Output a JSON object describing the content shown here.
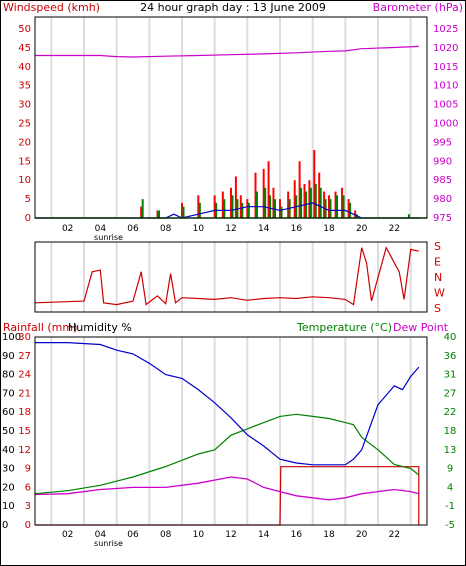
{
  "title": "24 hour graph day : 13 June 2009",
  "chart_data": [
    {
      "id": "wind_baro",
      "type": "bar+line",
      "ylabel_left": "Windspeed (kmh)",
      "ylabel_right": "Barometer (hPa)",
      "left_ticks": [
        "0",
        "5",
        "10",
        "15",
        "20",
        "25",
        "30",
        "35",
        "40",
        "45",
        "50"
      ],
      "right_ticks": [
        "975",
        "980",
        "985",
        "990",
        "995",
        "1000",
        "1005",
        "1010",
        "1015",
        "1020",
        "1025"
      ],
      "x_ticks": [
        "02",
        "04",
        "06",
        "08",
        "10",
        "12",
        "14",
        "16",
        "18",
        "20",
        "22"
      ],
      "x_sublabel": "sunrise",
      "ylim_left": [
        0,
        50
      ],
      "ylim_right": [
        975,
        1025
      ],
      "colors": {
        "gust": "#ff0000",
        "speed": "#008000",
        "avg": "#0000cc",
        "baro": "#cc00cc"
      },
      "barometer": [
        [
          0,
          1018
        ],
        [
          4,
          1018
        ],
        [
          5,
          1017.7
        ],
        [
          6,
          1017.6
        ],
        [
          8,
          1017.8
        ],
        [
          10,
          1018
        ],
        [
          12,
          1018.2
        ],
        [
          14,
          1018.4
        ],
        [
          16,
          1018.7
        ],
        [
          18,
          1019.1
        ],
        [
          19,
          1019.2
        ],
        [
          20,
          1019.8
        ],
        [
          22,
          1020.1
        ],
        [
          23.5,
          1020.4
        ]
      ],
      "wind_gust": [
        [
          6.5,
          3
        ],
        [
          7.5,
          2
        ],
        [
          9,
          4
        ],
        [
          10,
          6
        ],
        [
          11,
          6
        ],
        [
          11.5,
          7
        ],
        [
          12,
          8
        ],
        [
          12.3,
          11
        ],
        [
          12.6,
          6
        ],
        [
          13,
          5
        ],
        [
          13.5,
          12
        ],
        [
          14,
          13
        ],
        [
          14.3,
          15
        ],
        [
          14.6,
          8
        ],
        [
          15,
          5
        ],
        [
          15.5,
          7
        ],
        [
          15.9,
          10
        ],
        [
          16.2,
          15
        ],
        [
          16.5,
          9
        ],
        [
          16.8,
          10
        ],
        [
          17.1,
          18
        ],
        [
          17.4,
          12
        ],
        [
          17.7,
          7
        ],
        [
          18,
          6
        ],
        [
          18.4,
          7
        ],
        [
          18.8,
          8
        ],
        [
          19.2,
          5
        ],
        [
          19.6,
          2
        ]
      ],
      "wind_speed": [
        [
          6.5,
          5
        ],
        [
          7.5,
          2
        ],
        [
          9,
          3
        ],
        [
          10,
          4
        ],
        [
          11,
          4
        ],
        [
          11.5,
          5
        ],
        [
          12,
          6
        ],
        [
          12.3,
          5
        ],
        [
          12.6,
          4
        ],
        [
          13,
          4
        ],
        [
          13.5,
          7
        ],
        [
          14,
          8
        ],
        [
          14.3,
          6
        ],
        [
          14.6,
          5
        ],
        [
          15,
          3
        ],
        [
          15.5,
          5
        ],
        [
          15.9,
          6
        ],
        [
          16.2,
          8
        ],
        [
          16.5,
          7
        ],
        [
          16.8,
          8
        ],
        [
          17.1,
          9
        ],
        [
          17.4,
          8
        ],
        [
          17.7,
          5
        ],
        [
          18,
          5
        ],
        [
          18.4,
          6
        ],
        [
          18.8,
          6
        ],
        [
          19.2,
          4
        ],
        [
          19.6,
          1
        ],
        [
          22.8,
          1
        ]
      ],
      "wind_avg": [
        [
          0,
          0
        ],
        [
          8,
          0
        ],
        [
          8.5,
          1
        ],
        [
          9,
          0
        ],
        [
          10,
          1
        ],
        [
          11,
          2
        ],
        [
          12,
          2
        ],
        [
          13,
          3
        ],
        [
          14,
          3
        ],
        [
          15,
          2
        ],
        [
          16,
          3
        ],
        [
          17,
          4
        ],
        [
          18,
          2
        ],
        [
          19,
          2
        ],
        [
          19.5,
          1
        ],
        [
          20,
          0
        ],
        [
          23.5,
          0
        ]
      ]
    },
    {
      "id": "direction",
      "type": "line",
      "right_labels": [
        "S",
        "E",
        "N",
        "W",
        "S"
      ],
      "color": "#cc0000",
      "direction": [
        [
          0,
          210
        ],
        [
          3,
          220
        ],
        [
          3.5,
          30
        ],
        [
          4,
          40
        ],
        [
          4.2,
          210
        ],
        [
          5,
          200
        ],
        [
          6,
          220
        ],
        [
          6.5,
          30
        ],
        [
          6.8,
          200
        ],
        [
          7,
          215
        ],
        [
          7.5,
          250
        ],
        [
          8,
          205
        ],
        [
          8.3,
          20
        ],
        [
          8.6,
          210
        ],
        [
          9,
          240
        ],
        [
          10,
          235
        ],
        [
          11,
          230
        ],
        [
          12,
          240
        ],
        [
          13,
          225
        ],
        [
          14,
          235
        ],
        [
          15,
          240
        ],
        [
          16,
          235
        ],
        [
          17,
          245
        ],
        [
          18,
          240
        ],
        [
          19,
          230
        ],
        [
          19.5,
          200
        ],
        [
          20,
          170
        ],
        [
          20.3,
          80
        ],
        [
          20.6,
          220
        ],
        [
          21.5,
          170
        ],
        [
          22.3,
          30
        ],
        [
          22.6,
          230
        ],
        [
          23,
          160
        ],
        [
          23.5,
          150
        ]
      ]
    },
    {
      "id": "rain_hum_temp",
      "type": "line",
      "ylabel_left": "Rainfall (mm)",
      "ylabel_left2": "Humidity %",
      "ylabel_right": "Temperature (°C)",
      "ylabel_right2": "Dew Point",
      "rain_ticks": [
        "0",
        "3",
        "6",
        "9",
        "12",
        "15",
        "18",
        "21",
        "24",
        "27",
        "30"
      ],
      "hum_ticks": [
        "0",
        "10",
        "20",
        "30",
        "40",
        "50",
        "60",
        "70",
        "80",
        "90",
        "100"
      ],
      "temp_ticks": [
        "-5",
        "-1",
        "4",
        "9",
        "13",
        "18",
        "22",
        "27",
        "31",
        "36",
        "40"
      ],
      "x_ticks": [
        "02",
        "04",
        "06",
        "08",
        "10",
        "12",
        "14",
        "16",
        "18",
        "20",
        "22"
      ],
      "x_sublabel": "sunrise",
      "ylim_rain": [
        0,
        30
      ],
      "ylim_hum": [
        0,
        100
      ],
      "ylim_temp": [
        -5,
        40
      ],
      "colors": {
        "humidity": "#0000cc",
        "temperature": "#008000",
        "dewpoint": "#cc00cc",
        "rain": "#cc0000"
      },
      "humidity": [
        [
          0,
          97
        ],
        [
          2,
          97
        ],
        [
          4,
          96
        ],
        [
          5,
          93
        ],
        [
          6,
          91
        ],
        [
          7,
          86
        ],
        [
          8,
          80
        ],
        [
          9,
          78
        ],
        [
          10,
          72
        ],
        [
          11,
          65
        ],
        [
          12,
          57
        ],
        [
          13,
          48
        ],
        [
          14,
          42
        ],
        [
          15,
          35
        ],
        [
          16,
          33
        ],
        [
          17,
          32
        ],
        [
          18,
          32
        ],
        [
          19,
          32
        ],
        [
          19.5,
          35
        ],
        [
          20,
          40
        ],
        [
          21,
          64
        ],
        [
          22,
          74
        ],
        [
          22.5,
          72
        ],
        [
          23,
          79
        ],
        [
          23.5,
          84
        ]
      ],
      "temperature": [
        [
          0,
          2.5
        ],
        [
          2,
          3.2
        ],
        [
          4,
          4.5
        ],
        [
          6,
          6.5
        ],
        [
          8,
          9
        ],
        [
          10,
          12
        ],
        [
          11,
          13
        ],
        [
          12,
          16.5
        ],
        [
          13,
          18
        ],
        [
          14,
          19.5
        ],
        [
          15,
          21
        ],
        [
          16,
          21.5
        ],
        [
          17,
          21
        ],
        [
          18,
          20.5
        ],
        [
          19,
          19.5
        ],
        [
          19.5,
          19
        ],
        [
          20,
          16
        ],
        [
          21,
          13
        ],
        [
          22,
          9.5
        ],
        [
          23,
          8.5
        ],
        [
          23.5,
          7
        ]
      ],
      "dewpoint": [
        [
          0,
          2.3
        ],
        [
          2,
          2.5
        ],
        [
          4,
          3.5
        ],
        [
          6,
          4
        ],
        [
          8,
          4
        ],
        [
          10,
          5
        ],
        [
          12,
          6.5
        ],
        [
          13,
          6
        ],
        [
          14,
          4
        ],
        [
          15,
          3
        ],
        [
          16,
          2
        ],
        [
          17,
          1.5
        ],
        [
          18,
          1
        ],
        [
          19,
          1.5
        ],
        [
          20,
          2.5
        ],
        [
          21,
          3
        ],
        [
          22,
          3.5
        ],
        [
          23,
          3
        ],
        [
          23.5,
          2.5
        ]
      ],
      "rain": [
        [
          0,
          0
        ],
        [
          15,
          0
        ],
        [
          15.05,
          9.3
        ],
        [
          23.5,
          9.3
        ],
        [
          23.5,
          0
        ]
      ]
    }
  ]
}
